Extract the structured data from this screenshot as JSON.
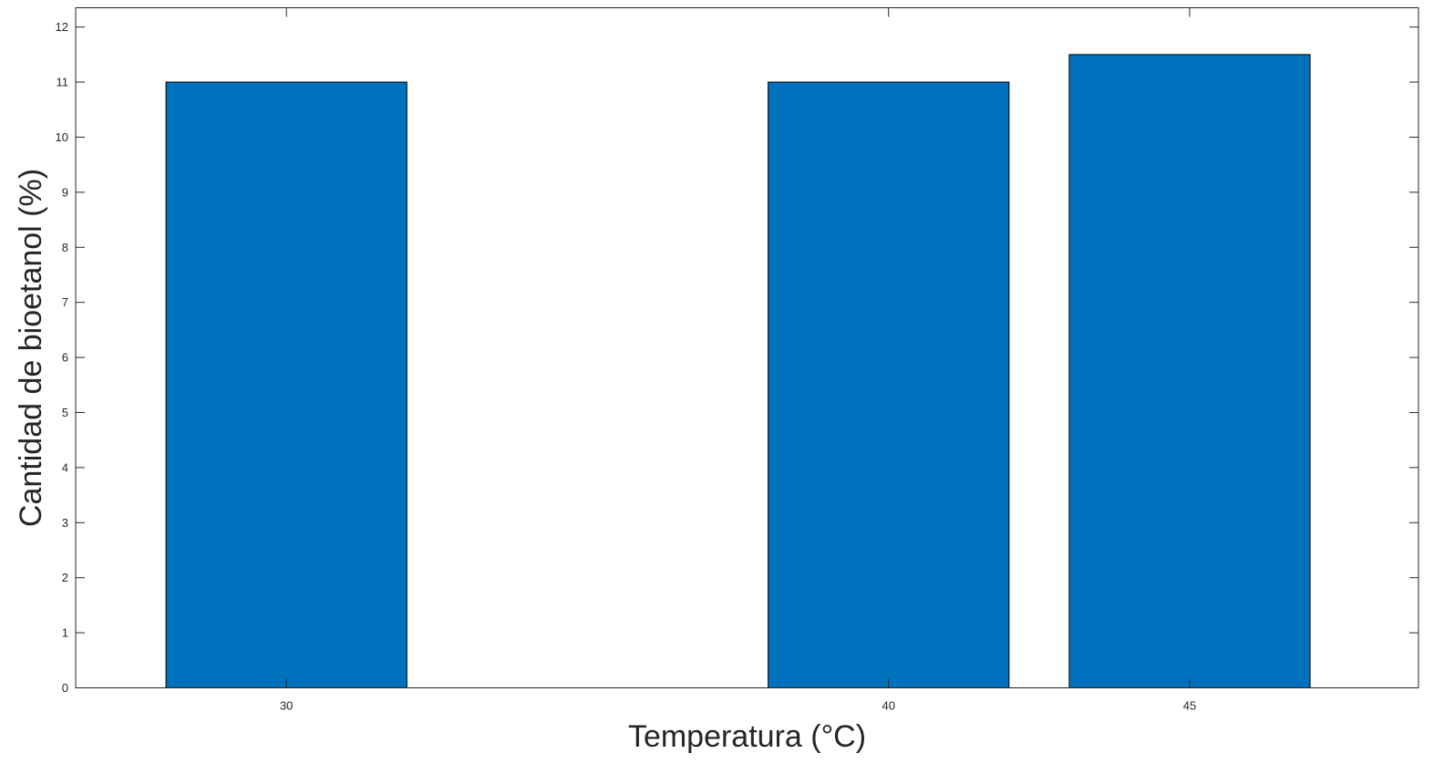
{
  "chart_data": {
    "type": "bar",
    "x": [
      30,
      40,
      45
    ],
    "values": [
      11,
      11,
      11.5
    ],
    "xlabel": "Temperatura (°C)",
    "ylabel": "Cantidad de bioetanol (%)",
    "xlim": [
      26.5,
      48.8
    ],
    "ylim": [
      0,
      12.35
    ],
    "x_ticks": [
      "30",
      "40",
      "45"
    ],
    "y_ticks": [
      "0",
      "1",
      "2",
      "3",
      "4",
      "5",
      "6",
      "7",
      "8",
      "9",
      "10",
      "11",
      "12"
    ],
    "bar_width_data": 4,
    "grid": false,
    "legend": "none",
    "colors": {
      "bar_fill": "#0072BD",
      "bar_stroke": "#000000",
      "axis": "#262626"
    }
  }
}
